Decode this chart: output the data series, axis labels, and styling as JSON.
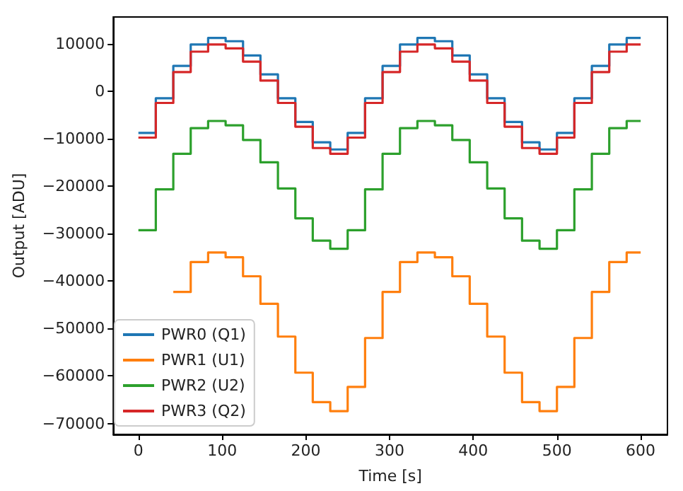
{
  "chart_data": {
    "type": "step",
    "xlabel": "Time [s]",
    "ylabel": "Output [ADU]",
    "x": [
      0,
      20.8,
      41.7,
      62.5,
      83.3,
      104.2,
      125,
      145.8,
      166.7,
      187.5,
      208.3,
      229.2,
      250,
      270.8,
      291.7,
      312.5,
      333.3,
      354.2,
      375,
      395.8,
      416.7,
      437.5,
      458.3,
      479.2,
      500,
      520.8,
      541.7,
      562.5,
      583.3,
      600
    ],
    "series": [
      {
        "name": "PWR0 (Q1)",
        "color": "#1f77b4",
        "values": [
          -8800,
          -1500,
          5300,
          9800,
          11200,
          10500,
          7500,
          3500,
          -1500,
          -6500,
          -10800,
          -12300,
          -8800,
          -1500,
          5300,
          9800,
          11200,
          10500,
          7500,
          3500,
          -1500,
          -6500,
          -10800,
          -12300,
          -8800,
          -1500,
          5300,
          9800,
          11200,
          11200
        ]
      },
      {
        "name": "PWR1 (U1)",
        "color": "#ff7f0e",
        "values": [
          null,
          null,
          -42300,
          -36000,
          -34000,
          -35000,
          -39000,
          -44800,
          -51700,
          -59300,
          -65500,
          -67400,
          -62300,
          -52000,
          -42300,
          -36000,
          -34000,
          -35000,
          -39000,
          -44800,
          -51700,
          -59300,
          -65500,
          -67400,
          -62300,
          -52000,
          -42300,
          -36000,
          -34000,
          -34000
        ]
      },
      {
        "name": "PWR2 (U2)",
        "color": "#2ca02c",
        "values": [
          -29300,
          -20700,
          -13200,
          -7800,
          -6300,
          -7200,
          -10300,
          -15000,
          -20500,
          -26800,
          -31500,
          -33200,
          -29300,
          -20700,
          -13200,
          -7800,
          -6300,
          -7200,
          -10300,
          -15000,
          -20500,
          -26800,
          -31500,
          -33200,
          -29300,
          -20700,
          -13200,
          -7800,
          -6300,
          -6300
        ]
      },
      {
        "name": "PWR3 (Q2)",
        "color": "#d62728",
        "values": [
          -9800,
          -2500,
          4000,
          8300,
          9800,
          9000,
          6200,
          2200,
          -2500,
          -7500,
          -12000,
          -13200,
          -9800,
          -2500,
          4000,
          8300,
          9800,
          9000,
          6200,
          2200,
          -2500,
          -7500,
          -12000,
          -13200,
          -9800,
          -2500,
          4000,
          8300,
          9800,
          9800
        ]
      }
    ],
    "xlim": [
      -30,
      632
    ],
    "xticks": [
      0,
      100,
      200,
      300,
      400,
      500,
      600
    ],
    "ylim": [
      -72300,
      15600
    ],
    "yticks": [
      -70000,
      -60000,
      -50000,
      -40000,
      -30000,
      -20000,
      -10000,
      0,
      10000
    ],
    "grid": false,
    "legend": "bottom left",
    "marker": "none",
    "line_style": "solid"
  }
}
